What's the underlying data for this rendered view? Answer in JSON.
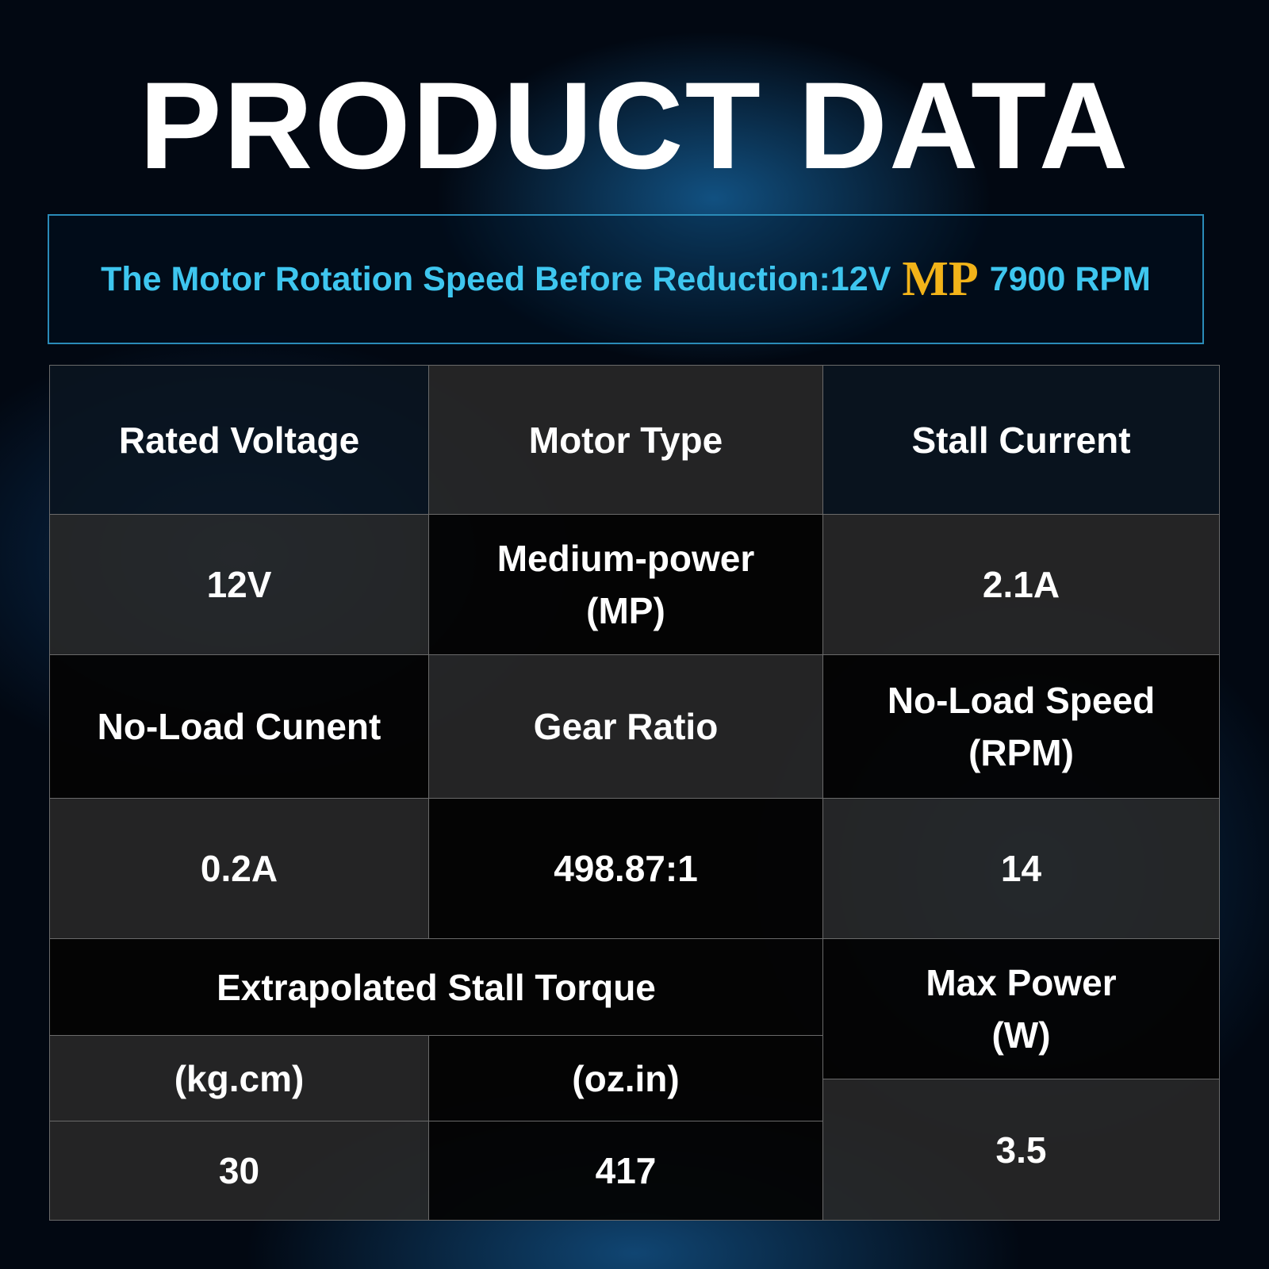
{
  "header": {
    "title": "PRODUCT DATA"
  },
  "banner": {
    "text": "The Motor Rotation Speed Before Reduction:12V",
    "highlight": "MP",
    "suffix": "7900 RPM"
  },
  "table": {
    "rows": [
      [
        "Rated Voltage",
        "Motor Type",
        "Stall Current"
      ],
      [
        "12V",
        "Medium-power (MP)",
        "2.1A"
      ],
      [
        "No-Load Cunent",
        "Gear Ratio",
        "No-Load Speed (RPM)"
      ],
      [
        "0.2A",
        "498.87:1",
        "14"
      ]
    ],
    "torque": {
      "label": "Extrapolated Stall Torque",
      "units": [
        "(kg.cm)",
        "(oz.in)"
      ],
      "values": [
        "30",
        "417"
      ]
    },
    "max_power": {
      "label": "Max Power (W)",
      "value": "3.5"
    }
  }
}
